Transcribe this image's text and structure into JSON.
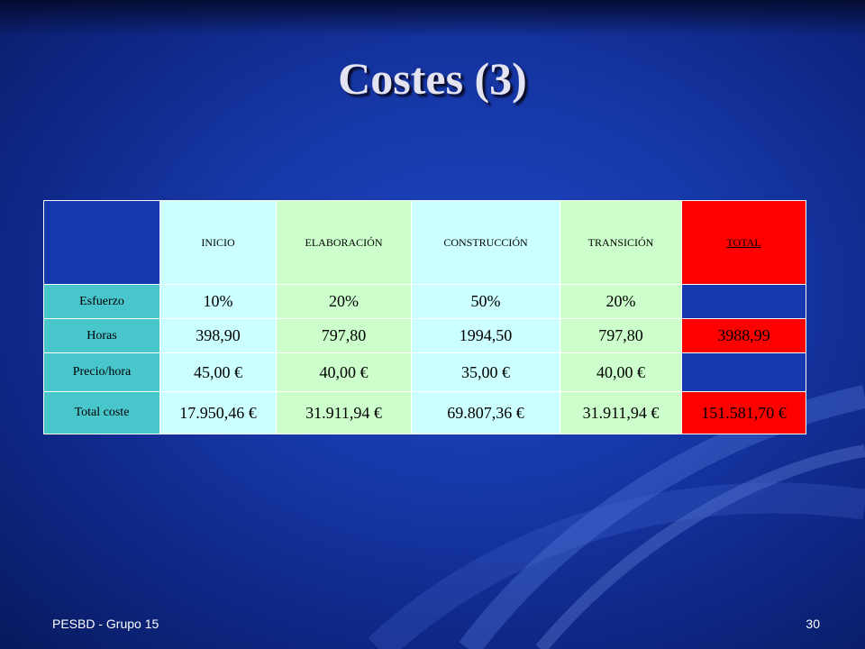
{
  "slide": {
    "title": "Costes (3)",
    "footer_left": "PESBD - Grupo 15",
    "page_number": "30"
  },
  "table": {
    "headers": [
      "INICIO",
      "ELABORACIÓN",
      "CONSTRUCCIÓN",
      "TRANSICIÓN",
      "TOTAL"
    ],
    "rows": [
      {
        "label": "Esfuerzo",
        "values": [
          "10%",
          "20%",
          "50%",
          "20%",
          ""
        ]
      },
      {
        "label": "Horas",
        "values": [
          "398,90",
          "797,80",
          "1994,50",
          "797,80",
          "3988,99"
        ]
      },
      {
        "label": "Precio/hora",
        "values": [
          "45,00 €",
          "40,00 €",
          "35,00 €",
          "40,00 €",
          ""
        ]
      },
      {
        "label": "Total coste",
        "values": [
          "17.950,46 €",
          "31.911,94 €",
          "69.807,36 €",
          "31.911,94 €",
          "151.581,70 €"
        ]
      }
    ]
  },
  "colors": {
    "background": "#1637a6",
    "label_cell": "#48c6cc",
    "cyan_cell": "#ccffff",
    "green_cell": "#ccffcc",
    "total_cell": "#ff0000",
    "blue_cell": "#1639b0"
  }
}
